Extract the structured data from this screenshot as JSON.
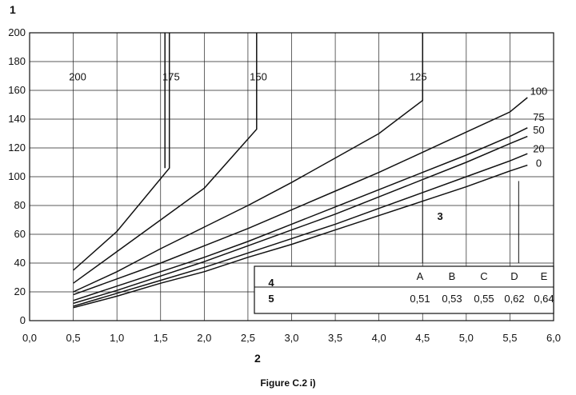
{
  "chart_data": {
    "type": "line",
    "y_axis_key": "1",
    "x_axis_key": "2",
    "xlim": [
      0,
      6
    ],
    "ylim": [
      0,
      200
    ],
    "x_ticks": [
      "0,0",
      "0,5",
      "1,0",
      "1,5",
      "2,0",
      "2,5",
      "3,0",
      "3,5",
      "4,0",
      "4,5",
      "5,0",
      "5,5",
      "6,0"
    ],
    "y_ticks": [
      "0",
      "20",
      "40",
      "60",
      "80",
      "100",
      "120",
      "140",
      "160",
      "180",
      "200"
    ],
    "grid": true,
    "series": [
      {
        "name": "0",
        "points": [
          [
            0.5,
            9
          ],
          [
            1.0,
            17
          ],
          [
            1.5,
            26
          ],
          [
            2.0,
            34
          ],
          [
            2.5,
            44
          ],
          [
            3.0,
            53
          ],
          [
            3.5,
            63
          ],
          [
            4.0,
            73
          ],
          [
            4.5,
            83
          ],
          [
            5.0,
            93
          ],
          [
            5.5,
            104
          ],
          [
            5.7,
            108
          ]
        ]
      },
      {
        "name": "20",
        "points": [
          [
            0.5,
            10
          ],
          [
            1.0,
            19
          ],
          [
            1.5,
            28
          ],
          [
            2.0,
            37
          ],
          [
            2.5,
            47
          ],
          [
            3.0,
            57
          ],
          [
            3.5,
            67
          ],
          [
            4.0,
            78
          ],
          [
            4.5,
            89
          ],
          [
            5.0,
            100
          ],
          [
            5.5,
            111
          ],
          [
            5.7,
            116
          ]
        ]
      },
      {
        "name": "50",
        "points": [
          [
            0.5,
            12
          ],
          [
            1.0,
            21
          ],
          [
            1.5,
            31
          ],
          [
            2.0,
            41
          ],
          [
            2.5,
            52
          ],
          [
            3.0,
            63
          ],
          [
            3.5,
            74
          ],
          [
            4.0,
            86
          ],
          [
            4.5,
            98
          ],
          [
            5.0,
            110
          ],
          [
            5.5,
            123
          ],
          [
            5.7,
            128
          ]
        ]
      },
      {
        "name": "75",
        "points": [
          [
            0.5,
            14
          ],
          [
            1.0,
            24
          ],
          [
            1.5,
            34
          ],
          [
            2.0,
            44
          ],
          [
            2.5,
            55
          ],
          [
            3.0,
            67
          ],
          [
            3.5,
            79
          ],
          [
            4.0,
            91
          ],
          [
            4.5,
            103
          ],
          [
            5.0,
            115
          ],
          [
            5.5,
            128
          ],
          [
            5.7,
            134
          ]
        ]
      },
      {
        "name": "100",
        "points": [
          [
            0.5,
            18
          ],
          [
            1.0,
            29
          ],
          [
            1.5,
            40
          ],
          [
            2.0,
            52
          ],
          [
            2.5,
            64
          ],
          [
            3.0,
            77
          ],
          [
            3.5,
            90
          ],
          [
            4.0,
            103
          ],
          [
            4.5,
            117
          ],
          [
            5.0,
            131
          ],
          [
            5.5,
            145
          ],
          [
            5.7,
            155
          ]
        ]
      },
      {
        "name": "125",
        "points": [
          [
            0.5,
            20
          ],
          [
            1.0,
            34
          ],
          [
            1.5,
            50
          ],
          [
            2.0,
            65
          ],
          [
            2.5,
            80
          ],
          [
            3.0,
            96
          ],
          [
            3.5,
            113
          ],
          [
            4.0,
            130
          ],
          [
            4.5,
            153
          ],
          [
            4.5,
            157
          ],
          [
            4.5,
            200
          ]
        ]
      },
      {
        "name": "150",
        "points": [
          [
            0.5,
            26
          ],
          [
            1.0,
            48
          ],
          [
            1.5,
            70
          ],
          [
            2.0,
            92
          ],
          [
            2.6,
            133
          ],
          [
            2.6,
            200
          ]
        ]
      },
      {
        "name": "175",
        "points": [
          [
            0.5,
            35
          ],
          [
            1.0,
            62
          ],
          [
            1.6,
            106
          ],
          [
            1.6,
            200
          ]
        ]
      },
      {
        "name": "200",
        "points": [
          [
            1.55,
            200
          ],
          [
            1.55,
            106
          ]
        ]
      }
    ],
    "curve_labels": [
      {
        "text": "200",
        "x": 0.55,
        "y": 167
      },
      {
        "text": "175",
        "x": 1.62,
        "y": 167
      },
      {
        "text": "150",
        "x": 2.62,
        "y": 167
      },
      {
        "text": "125",
        "x": 4.45,
        "y": 167
      },
      {
        "text": "100",
        "x": 5.83,
        "y": 157
      },
      {
        "text": "75",
        "x": 5.83,
        "y": 139
      },
      {
        "text": "50",
        "x": 5.83,
        "y": 130
      },
      {
        "text": "20",
        "x": 5.83,
        "y": 117
      },
      {
        "text": "0",
        "x": 5.83,
        "y": 107
      }
    ],
    "annotation": {
      "text": "3",
      "x": 4.7,
      "y": 70
    },
    "annotation_markers_x": [
      4.5,
      5.6
    ],
    "table": {
      "row_key_header": "4",
      "row_key_values": "5",
      "headers": [
        "A",
        "B",
        "C",
        "D",
        "E"
      ],
      "values": [
        "0,51",
        "0,53",
        "0,55",
        "0,62",
        "0,64"
      ]
    }
  },
  "caption": "Figure C.2 i)"
}
